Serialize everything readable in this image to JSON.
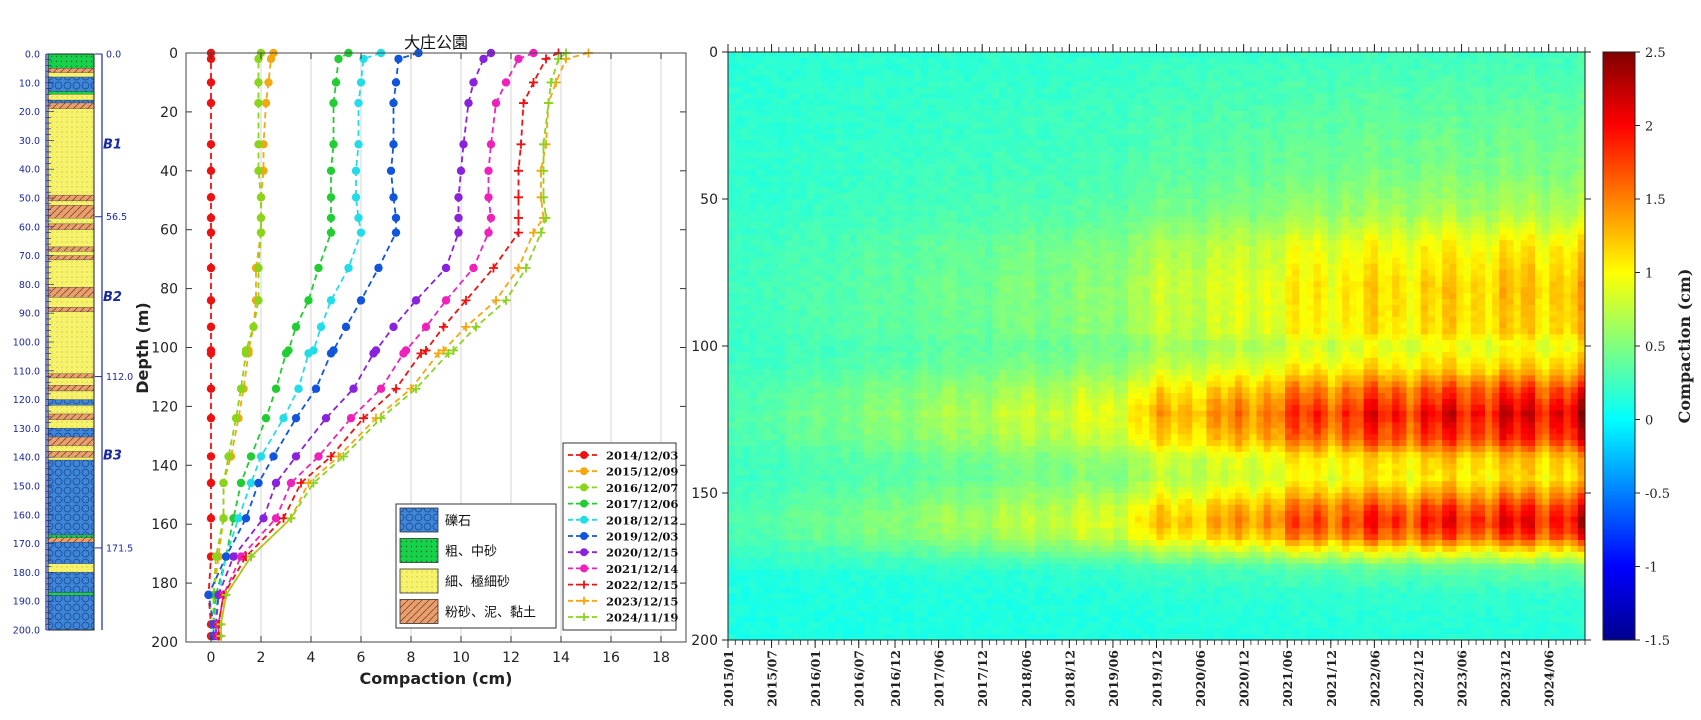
{
  "colors": {
    "gravel": "#3f86d8",
    "coarse_sand": "#18d14a",
    "fine_sand": "#f6f26a",
    "silt_clay": "#e9a070",
    "axis_blue": "#1a2a9a"
  },
  "column": {
    "ticks": [
      "0.0",
      "10.0",
      "20.0",
      "30.0",
      "40.0",
      "50.0",
      "60.0",
      "70.0",
      "80.0",
      "90.0",
      "100.0",
      "110.0",
      "120.0",
      "130.0",
      "140.0",
      "150.0",
      "160.0",
      "170.0",
      "180.0",
      "190.0",
      "200.0"
    ],
    "units": [
      {
        "name": "B1",
        "top_label": "0.0"
      },
      {
        "name": "B2",
        "top_label": "56.5"
      },
      {
        "name": "B3",
        "top_label": "112.0"
      }
    ],
    "bottom_label": "171.5",
    "layers": [
      {
        "from": 0,
        "to": 5,
        "type": "coarse_sand"
      },
      {
        "from": 5,
        "to": 6.5,
        "type": "silt_clay"
      },
      {
        "from": 6.5,
        "to": 8,
        "type": "fine_sand"
      },
      {
        "from": 8,
        "to": 13,
        "type": "gravel"
      },
      {
        "from": 13,
        "to": 14,
        "type": "coarse_sand"
      },
      {
        "from": 14,
        "to": 16,
        "type": "fine_sand"
      },
      {
        "from": 16,
        "to": 17,
        "type": "gravel"
      },
      {
        "from": 17,
        "to": 19,
        "type": "silt_clay"
      },
      {
        "from": 19,
        "to": 49,
        "type": "fine_sand"
      },
      {
        "from": 49,
        "to": 51,
        "type": "silt_clay"
      },
      {
        "from": 51,
        "to": 52.5,
        "type": "fine_sand"
      },
      {
        "from": 52.5,
        "to": 57,
        "type": "silt_clay"
      },
      {
        "from": 57,
        "to": 59,
        "type": "fine_sand"
      },
      {
        "from": 59,
        "to": 61,
        "type": "silt_clay"
      },
      {
        "from": 61,
        "to": 67,
        "type": "fine_sand"
      },
      {
        "from": 67,
        "to": 68.5,
        "type": "silt_clay"
      },
      {
        "from": 68.5,
        "to": 70,
        "type": "fine_sand"
      },
      {
        "from": 70,
        "to": 71.5,
        "type": "silt_clay"
      },
      {
        "from": 71.5,
        "to": 81,
        "type": "fine_sand"
      },
      {
        "from": 81,
        "to": 84.5,
        "type": "silt_clay"
      },
      {
        "from": 84.5,
        "to": 88,
        "type": "fine_sand"
      },
      {
        "from": 88,
        "to": 89.5,
        "type": "silt_clay"
      },
      {
        "from": 89.5,
        "to": 111,
        "type": "fine_sand"
      },
      {
        "from": 111,
        "to": 112.5,
        "type": "silt_clay"
      },
      {
        "from": 112.5,
        "to": 115,
        "type": "fine_sand"
      },
      {
        "from": 115,
        "to": 117,
        "type": "silt_clay"
      },
      {
        "from": 117,
        "to": 120,
        "type": "fine_sand"
      },
      {
        "from": 120,
        "to": 122,
        "type": "gravel"
      },
      {
        "from": 122,
        "to": 125,
        "type": "fine_sand"
      },
      {
        "from": 125,
        "to": 127,
        "type": "silt_clay"
      },
      {
        "from": 127,
        "to": 130,
        "type": "fine_sand"
      },
      {
        "from": 130,
        "to": 133,
        "type": "gravel"
      },
      {
        "from": 133,
        "to": 136,
        "type": "silt_clay"
      },
      {
        "from": 136,
        "to": 138,
        "type": "fine_sand"
      },
      {
        "from": 138,
        "to": 140,
        "type": "silt_clay"
      },
      {
        "from": 140,
        "to": 141,
        "type": "fine_sand"
      },
      {
        "from": 141,
        "to": 167,
        "type": "gravel"
      },
      {
        "from": 167,
        "to": 168,
        "type": "coarse_sand"
      },
      {
        "from": 168,
        "to": 169.5,
        "type": "silt_clay"
      },
      {
        "from": 169.5,
        "to": 177,
        "type": "gravel"
      },
      {
        "from": 177,
        "to": 180,
        "type": "fine_sand"
      },
      {
        "from": 180,
        "to": 187,
        "type": "gravel"
      },
      {
        "from": 187,
        "to": 188,
        "type": "coarse_sand"
      },
      {
        "from": 188,
        "to": 200,
        "type": "gravel"
      }
    ]
  },
  "legend_lith": [
    {
      "key": "gravel",
      "label": "礫石"
    },
    {
      "key": "coarse_sand",
      "label": "粗、中砂"
    },
    {
      "key": "fine_sand",
      "label": "細、極細砂"
    },
    {
      "key": "silt_clay",
      "label": "粉砂、泥、黏土"
    }
  ],
  "chart_data": [
    {
      "type": "line",
      "title": "大庄公園",
      "xlabel": "Compaction (cm)",
      "ylabel": "Depth (m)",
      "xlim": [
        -1,
        19
      ],
      "ylim": [
        200,
        0
      ],
      "x_ticks": [
        "0",
        "2",
        "4",
        "6",
        "8",
        "10",
        "12",
        "14",
        "16",
        "18"
      ],
      "y_ticks": [
        "0",
        "20",
        "40",
        "60",
        "80",
        "100",
        "120",
        "140",
        "160",
        "180",
        "200"
      ],
      "depths": [
        0,
        2,
        10,
        17,
        31,
        40,
        49,
        56,
        61,
        73,
        84,
        93,
        101,
        102,
        114,
        124,
        137,
        146,
        158,
        171,
        184,
        194,
        198
      ],
      "series": [
        {
          "name": "2014/12/03",
          "color": "#ee1111",
          "marker": "dot",
          "values": [
            0,
            0,
            0,
            0,
            0,
            0,
            0,
            0,
            0,
            0,
            0,
            0,
            0,
            0,
            0,
            0,
            0,
            0,
            0,
            0,
            -0.1,
            0,
            0
          ]
        },
        {
          "name": "2015/12/09",
          "color": "#f5a70f",
          "marker": "dot",
          "values": [
            2.5,
            2.4,
            2.3,
            2.2,
            2.1,
            2.1,
            2.0,
            2.0,
            2.0,
            1.8,
            1.8,
            1.7,
            1.5,
            1.5,
            1.3,
            1.1,
            0.8,
            0.5,
            0.5,
            0.3,
            0.1,
            0.1,
            0.1
          ]
        },
        {
          "name": "2016/12/07",
          "color": "#8bd41c",
          "marker": "dot",
          "values": [
            2.0,
            1.9,
            1.9,
            1.9,
            1.9,
            1.9,
            2.0,
            2.0,
            2.0,
            1.9,
            1.9,
            1.7,
            1.4,
            1.4,
            1.2,
            1.0,
            0.7,
            0.5,
            0.5,
            0.2,
            0.1,
            0.1,
            0.1
          ]
        },
        {
          "name": "2017/12/06",
          "color": "#22cc33",
          "marker": "dot",
          "values": [
            5.5,
            5.1,
            5.0,
            4.9,
            4.9,
            4.8,
            4.8,
            4.8,
            4.8,
            4.3,
            3.9,
            3.4,
            3.1,
            3.0,
            2.6,
            2.2,
            1.6,
            1.2,
            0.9,
            0.6,
            0.2,
            0.1,
            0.1
          ]
        },
        {
          "name": "2018/12/12",
          "color": "#22dde8",
          "marker": "dot",
          "values": [
            6.8,
            6.1,
            6.0,
            5.9,
            5.9,
            5.8,
            5.8,
            5.9,
            6.0,
            5.5,
            4.8,
            4.4,
            4.1,
            3.9,
            3.5,
            2.9,
            2.0,
            1.6,
            1.1,
            0.6,
            0.3,
            0.1,
            0.1
          ]
        },
        {
          "name": "2019/12/03",
          "color": "#1155dd",
          "marker": "dot",
          "values": [
            8.3,
            7.5,
            7.4,
            7.3,
            7.3,
            7.2,
            7.3,
            7.4,
            7.4,
            6.7,
            6.0,
            5.4,
            4.9,
            4.8,
            4.2,
            3.4,
            2.5,
            1.9,
            1.4,
            0.6,
            -0.1,
            0.1,
            0.1
          ]
        },
        {
          "name": "2020/12/15",
          "color": "#8822dd",
          "marker": "dot",
          "values": [
            11.2,
            10.9,
            10.5,
            10.3,
            10.1,
            10.0,
            9.9,
            9.9,
            9.9,
            9.4,
            8.2,
            7.3,
            6.6,
            6.5,
            5.7,
            4.6,
            3.4,
            2.6,
            2.1,
            0.9,
            0.3,
            0.2,
            0.2
          ]
        },
        {
          "name": "2021/12/14",
          "color": "#ee22bb",
          "marker": "dot",
          "values": [
            12.9,
            12.3,
            11.8,
            11.4,
            11.2,
            11.1,
            11.1,
            11.2,
            11.1,
            10.5,
            9.4,
            8.6,
            7.8,
            7.7,
            6.8,
            5.6,
            4.3,
            3.2,
            2.6,
            1.2,
            0.5,
            0.3,
            0.3
          ]
        },
        {
          "name": "2022/12/15",
          "color": "#ee1111",
          "marker": "plus",
          "values": [
            13.9,
            13.4,
            12.9,
            12.5,
            12.4,
            12.3,
            12.3,
            12.3,
            12.3,
            11.3,
            10.2,
            9.3,
            8.6,
            8.4,
            7.4,
            6.1,
            4.8,
            3.6,
            2.9,
            1.4,
            0.5,
            0.3,
            0.3
          ]
        },
        {
          "name": "2023/12/15",
          "color": "#f5a70f",
          "marker": "plus",
          "values": [
            15.1,
            14.2,
            13.8,
            13.5,
            13.4,
            13.2,
            13.2,
            13.3,
            12.9,
            12.3,
            11.4,
            10.2,
            9.3,
            9.1,
            8.0,
            6.6,
            5.1,
            3.9,
            3.2,
            1.6,
            0.6,
            0.4,
            0.4
          ]
        },
        {
          "name": "2024/11/19",
          "color": "#8bd41c",
          "marker": "plus",
          "values": [
            14.2,
            13.9,
            13.6,
            13.5,
            13.3,
            13.3,
            13.3,
            13.4,
            13.2,
            12.6,
            11.8,
            10.6,
            9.7,
            9.5,
            8.2,
            6.8,
            5.3,
            4.1,
            3.2,
            1.6,
            0.6,
            0.4,
            0.4
          ]
        }
      ]
    },
    {
      "type": "heatmap",
      "colorbar_label": "Compaction (cm)",
      "zlim": [
        -1.5,
        2.5
      ],
      "colorbar_ticks": [
        "2.5",
        "2",
        "1.5",
        "1",
        "0.5",
        "0",
        "-0.5",
        "-1",
        "-1.5"
      ],
      "ylim": [
        200,
        0
      ],
      "y_ticks": [
        "0",
        "50",
        "100",
        "150",
        "200"
      ],
      "x_ticks": [
        "2015/01",
        "2015/07",
        "2016/01",
        "2016/07",
        "2016/12",
        "2017/06",
        "2017/12",
        "2018/06",
        "2018/12",
        "2019/06",
        "2019/12",
        "2020/06",
        "2020/12",
        "2021/06",
        "2021/12",
        "2022/06",
        "2022/12",
        "2023/06",
        "2023/12",
        "2024/06"
      ],
      "depth_profile": {
        "depths": [
          0,
          20,
          40,
          55,
          65,
          80,
          95,
          100,
          108,
          115,
          123,
          132,
          138,
          145,
          150,
          155,
          160,
          165,
          170,
          175,
          185,
          200
        ],
        "weights": [
          0.05,
          0.12,
          0.18,
          0.28,
          0.45,
          0.55,
          0.52,
          0.4,
          0.55,
          0.82,
          1.0,
          0.85,
          0.55,
          0.5,
          0.65,
          0.85,
          0.95,
          0.8,
          0.45,
          0.15,
          0.05,
          0.02
        ]
      },
      "time_amplitude": {
        "times": [
          "2015/01",
          "2016/07",
          "2017/12",
          "2019/06",
          "2019/12",
          "2020/12",
          "2021/06",
          "2022/06",
          "2023/06",
          "2024/06",
          "2024/11"
        ],
        "values": [
          0.15,
          0.35,
          0.55,
          0.75,
          1.1,
          1.3,
          1.55,
          1.75,
          1.85,
          1.95,
          2.0
        ]
      },
      "baseline": 0.15,
      "noise": 0.1
    }
  ]
}
